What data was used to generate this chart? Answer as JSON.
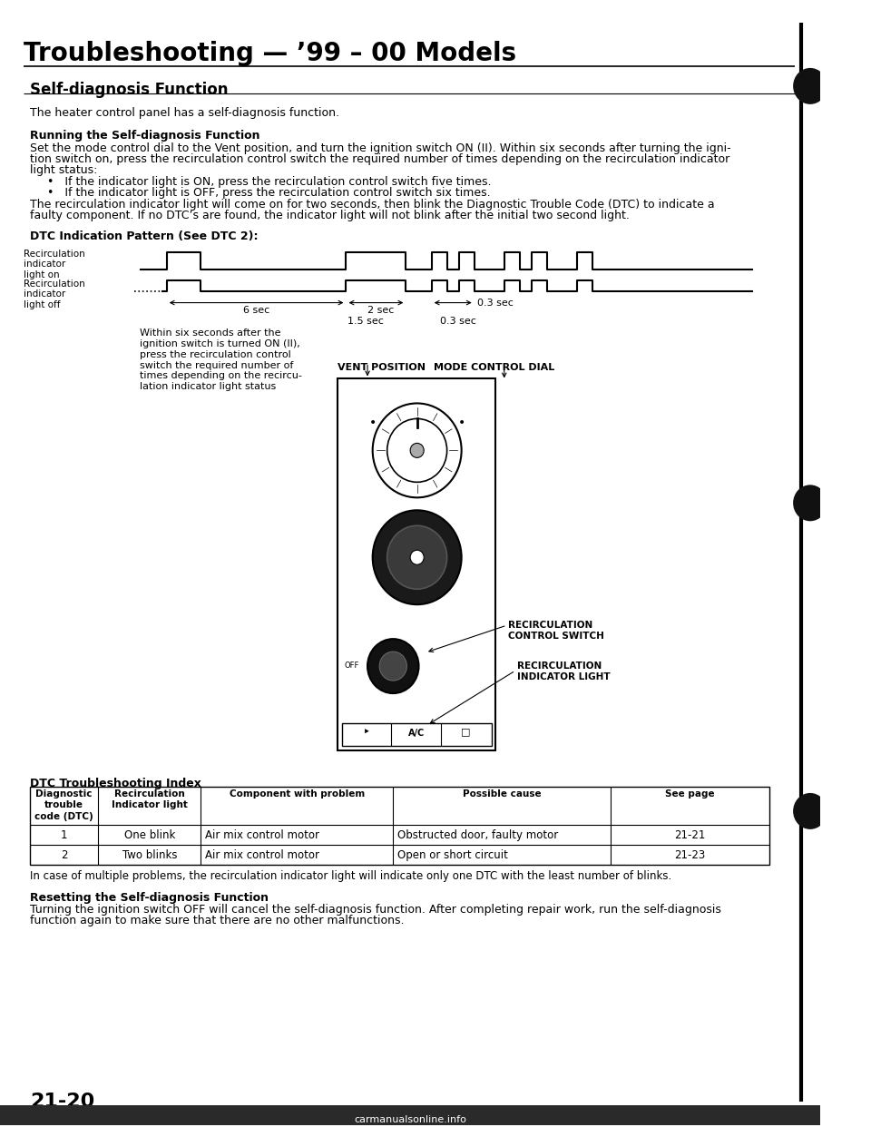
{
  "title": "Troubleshooting — ’99 – 00 Models",
  "section_title": "Self-diagnosis Function",
  "intro_text": "The heater control panel has a self-diagnosis function.",
  "running_title": "Running the Self-diagnosis Function",
  "running_text1": "Set the mode control dial to the Vent position, and turn the ignition switch ON (II). Within six seconds after turning the igni-",
  "running_text2": "tion switch on, press the recirculation control switch the required number of times depending on the recirculation indicator",
  "running_text3": "light status:",
  "bullet1": "•   If the indicator light is ON, press the recirculation control switch five times.",
  "bullet2": "•   If the indicator light is OFF, press the recirculation control switch six times.",
  "following_text1": "The recirculation indicator light will come on for two seconds, then blink the Diagnostic Trouble Code (DTC) to indicate a",
  "following_text2": "faulty component. If no DTC’s are found, the indicator light will not blink after the initial two second light.",
  "dtc_pattern_title": "DTC Indication Pattern (See DTC 2):",
  "label_on": "Recirculation\nindicator\nlight on",
  "label_off": "Recirculation\nindicator\nlight off",
  "time_6sec": "6 sec",
  "time_2sec": "2 sec",
  "time_03sec": "0.3 sec",
  "time_15sec": "1.5 sec",
  "time_03sec2": "0.3 sec",
  "side_text1": "Within six seconds after the",
  "side_text2": "ignition switch is turned ON (II),",
  "side_text3": "press the recirculation control",
  "side_text4": "switch the required number of",
  "side_text5": "times depending on the recircu-",
  "side_text6": "lation indicator light status",
  "vent_label": "VENT POSITION",
  "mode_label": "MODE CONTROL DIAL",
  "recirc_switch_label": "RECIRCULATION\nCONTROL SWITCH",
  "recirc_indicator_label": "RECIRCULATION\nINDICATOR LIGHT",
  "dtc_table_title": "DTC Troubleshooting Index",
  "col1": "Diagnostic\ntrouble\ncode (DTC)",
  "col2": "Recirculation\nIndicator light",
  "col3": "Component with problem",
  "col4": "Possible cause",
  "col5": "See page",
  "row1": [
    "1",
    "One blink",
    "Air mix control motor",
    "Obstructed door, faulty motor",
    "21-21"
  ],
  "row2": [
    "2",
    "Two blinks",
    "Air mix control motor",
    "Open or short circuit",
    "21-23"
  ],
  "footer_text": "In case of multiple problems, the recirculation indicator light will indicate only one DTC with the least number of blinks.",
  "resetting_title": "Resetting the Self-diagnosis Function",
  "resetting_text1": "Turning the ignition switch OFF will cancel the self-diagnosis function. After completing repair work, run the self-diagnosis",
  "resetting_text2": "function again to make sure that there are no other malfunctions.",
  "page_number": "21-20",
  "watermark": "carmanualsonline.info",
  "bg_color": "#ffffff"
}
